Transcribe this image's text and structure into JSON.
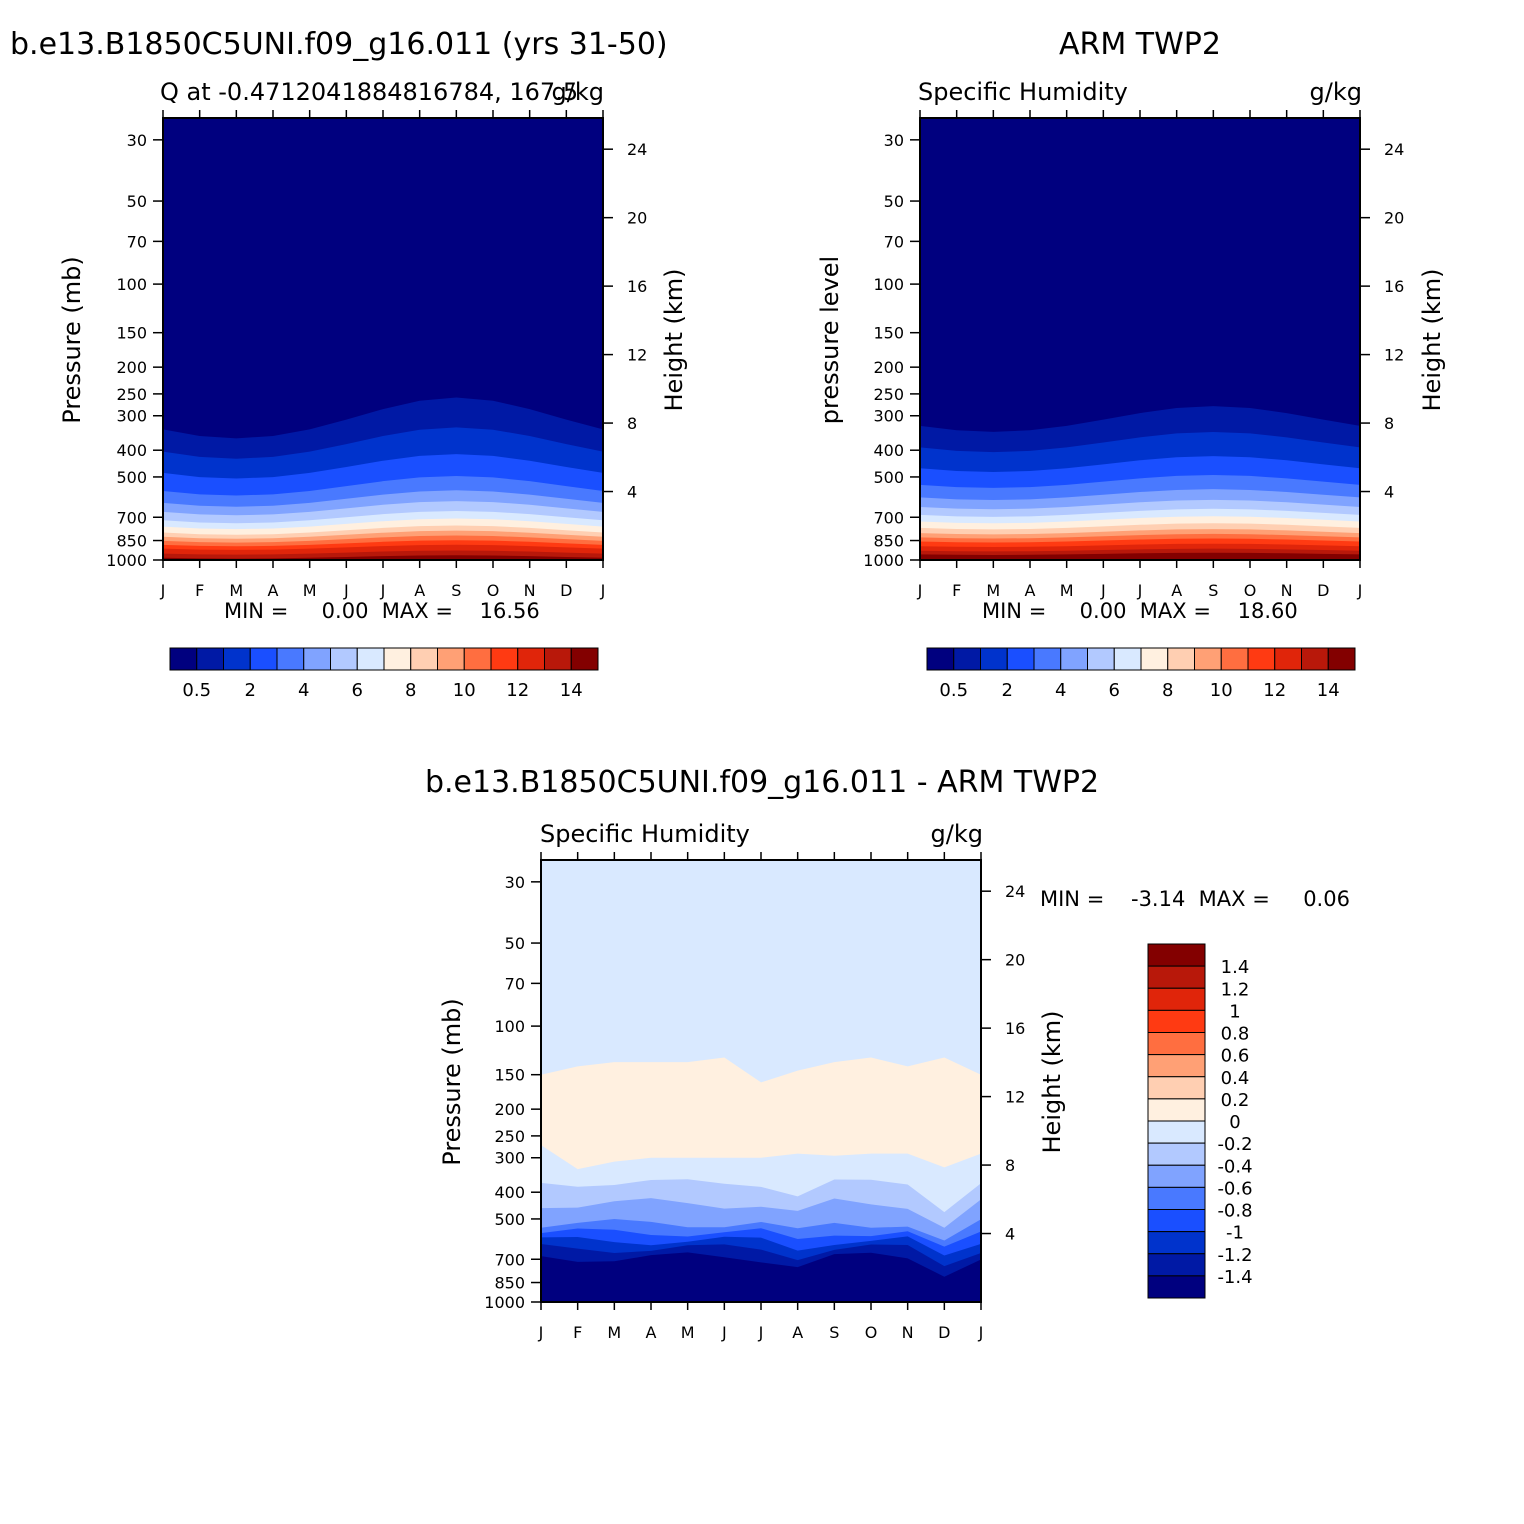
{
  "chart_data": [
    {
      "type": "heatmap",
      "id": "model",
      "main_title": "b.e13.B1850C5UNI.f09_g16.011 (yrs 31-50)",
      "left_subtitle": "Q at -0.4712041884816784, 167.5",
      "right_subtitle": "g/kg",
      "xlabel": "",
      "ylabel": "Pressure (mb)",
      "y2label": "Height (km)",
      "x_ticks": [
        "J",
        "F",
        "M",
        "A",
        "M",
        "J",
        "J",
        "A",
        "S",
        "O",
        "N",
        "D",
        "J"
      ],
      "p_ticks": [
        30,
        50,
        70,
        100,
        150,
        200,
        250,
        300,
        400,
        500,
        700,
        850,
        1000
      ],
      "ylim_mb": [
        1000,
        25
      ],
      "z_ticks_km": [
        4,
        8,
        12,
        16,
        20,
        24
      ],
      "stats": "MIN =     0.00  MAX =    16.56",
      "min": 0.0,
      "max": 16.56,
      "colorbar_labels": [
        "0.5",
        "2",
        "4",
        "6",
        "8",
        "10",
        "12",
        "14"
      ],
      "colorbar_colors": [
        "#00007f",
        "#0019a5",
        "#0033cc",
        "#1a4fff",
        "#4979ff",
        "#80a3ff",
        "#b2c9ff",
        "#d9e9ff",
        "#fff0e0",
        "#ffcfb2",
        "#ffa075",
        "#ff6e40",
        "#ff3a12",
        "#e0250a",
        "#b8180a",
        "#830000"
      ],
      "surface_q_gkg": [
        15.8,
        15.9,
        16.2,
        16.3,
        16.3,
        16.4,
        16.4,
        16.5,
        16.6,
        16.5,
        16.4,
        16.1,
        15.8
      ]
    },
    {
      "type": "heatmap",
      "id": "obs",
      "main_title": "ARM TWP2",
      "left_subtitle": "Specific Humidity",
      "right_subtitle": "g/kg",
      "xlabel": "",
      "ylabel": "pressure level",
      "y2label": "Height (km)",
      "x_ticks": [
        "J",
        "F",
        "M",
        "A",
        "M",
        "J",
        "J",
        "A",
        "S",
        "O",
        "N",
        "D",
        "J"
      ],
      "p_ticks": [
        30,
        50,
        70,
        100,
        150,
        200,
        250,
        300,
        400,
        500,
        700,
        850,
        1000
      ],
      "ylim_mb": [
        1000,
        25
      ],
      "z_ticks_km": [
        4,
        8,
        12,
        16,
        20,
        24
      ],
      "stats": "MIN =     0.00  MAX =    18.60",
      "min": 0.0,
      "max": 18.6,
      "colorbar_labels": [
        "0.5",
        "2",
        "4",
        "6",
        "8",
        "10",
        "12",
        "14"
      ],
      "colorbar_colors": [
        "#00007f",
        "#0019a5",
        "#0033cc",
        "#1a4fff",
        "#4979ff",
        "#80a3ff",
        "#b2c9ff",
        "#d9e9ff",
        "#fff0e0",
        "#ffcfb2",
        "#ffa075",
        "#ff6e40",
        "#ff3a12",
        "#e0250a",
        "#b8180a",
        "#830000"
      ],
      "surface_q_gkg": [
        18.1,
        18.2,
        18.4,
        18.5,
        18.5,
        18.5,
        18.6,
        18.5,
        18.4,
        18.4,
        18.3,
        18.2,
        18.1
      ]
    },
    {
      "type": "heatmap",
      "id": "difference",
      "main_title": "b.e13.B1850C5UNI.f09_g16.011 - ARM TWP2",
      "left_subtitle": "Specific Humidity",
      "right_subtitle": "g/kg",
      "xlabel": "",
      "ylabel": "Pressure (mb)",
      "y2label": "Height (km)",
      "x_ticks": [
        "J",
        "F",
        "M",
        "A",
        "M",
        "J",
        "J",
        "A",
        "S",
        "O",
        "N",
        "D",
        "J"
      ],
      "p_ticks": [
        30,
        50,
        70,
        100,
        150,
        200,
        250,
        300,
        400,
        500,
        700,
        850,
        1000
      ],
      "ylim_mb": [
        1000,
        25
      ],
      "z_ticks_km": [
        4,
        8,
        12,
        16,
        20,
        24
      ],
      "stats": "MIN =    -3.14  MAX =     0.06",
      "min": -3.14,
      "max": 0.06,
      "colorbar_labels": [
        "1.4",
        "1.2",
        "1",
        "0.8",
        "0.6",
        "0.4",
        "0.2",
        "0",
        "-0.2",
        "-0.4",
        "-0.6",
        "-0.8",
        "-1",
        "-1.2",
        "-1.4"
      ],
      "colorbar_colors": [
        "#830000",
        "#b8180a",
        "#e0250a",
        "#ff3a12",
        "#ff6e40",
        "#ffa075",
        "#ffcfb2",
        "#fff0e0",
        "#d9e9ff",
        "#b2c9ff",
        "#80a3ff",
        "#4979ff",
        "#1a4fff",
        "#0033cc",
        "#0019a5",
        "#00007f"
      ],
      "positive_band_top_mb": [
        150,
        140,
        135,
        135,
        135,
        130,
        160,
        145,
        135,
        130,
        140,
        130,
        150
      ],
      "positive_band_bottom_mb": [
        270,
        330,
        310,
        300,
        300,
        300,
        300,
        290,
        295,
        290,
        290,
        325,
        290
      ]
    }
  ]
}
